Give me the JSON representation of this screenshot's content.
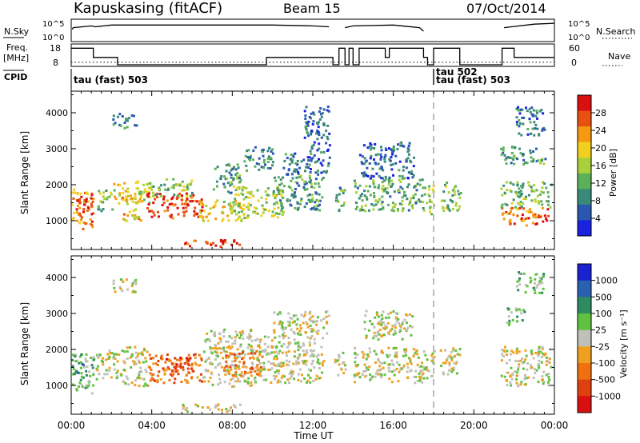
{
  "header": {
    "station": "Kapuskasing (fitACF)",
    "beam": "Beam 15",
    "date": "07/Oct/2014"
  },
  "strip": {
    "nsky_label": "N.Sky",
    "nsky_ticks": [
      "10^5",
      "10^0"
    ],
    "nsearch_label": "N.Search",
    "nsearch_ticks": [
      "10^5",
      "10^0"
    ],
    "freq_label_1": "Freq.",
    "freq_label_2": "[MHz]",
    "freq_ticks": [
      "18",
      "8"
    ],
    "nave_label": "Nave",
    "nave_ticks": [
      "60",
      "0"
    ],
    "cpid_label": "CPID",
    "cpid_entries": [
      {
        "hour": 0,
        "text": "tau (fast) 503",
        "row": "low"
      },
      {
        "hour": 18,
        "text": "tau 502",
        "row": "high"
      },
      {
        "hour": 18,
        "text": "tau (fast) 503",
        "row": "low"
      }
    ]
  },
  "x_axis": {
    "label": "Time UT",
    "ticks": [
      "00:00",
      "04:00",
      "08:00",
      "12:00",
      "16:00",
      "20:00",
      "00:00"
    ]
  },
  "colors": {
    "power": [
      "#1a22e0",
      "#2a58b0",
      "#3a8a7a",
      "#5cb05a",
      "#a8d03a",
      "#f2d020",
      "#f59a10",
      "#e85010",
      "#d81010"
    ],
    "velocity": [
      "#1a22d0",
      "#2a60b0",
      "#2e8a60",
      "#60c040",
      "#c0c0b8",
      "#f0a020",
      "#f07010",
      "#e04010",
      "#d81010"
    ]
  },
  "chart_data": [
    {
      "type": "heatmap",
      "title": "Power",
      "xlabel": "Time UT",
      "ylabel": "Slant Range [km]",
      "xlim": [
        0,
        24
      ],
      "ylim": [
        200,
        4600
      ],
      "yticks": [
        1000,
        2000,
        3000,
        4000
      ],
      "colorbar_label": "Power [dB]",
      "colorbar_ticks": [
        "4",
        "8",
        "12",
        "16",
        "20",
        "24",
        "28"
      ],
      "colorbar_range": [
        0,
        30
      ],
      "vertical_dashed_line_hour": 18,
      "features": [
        {
          "t": [
            0.0,
            1.1
          ],
          "r": [
            800,
            1900
          ],
          "v": 22
        },
        {
          "t": [
            0.2,
            1.0
          ],
          "r": [
            1200,
            1700
          ],
          "v": 27
        },
        {
          "t": [
            1.2,
            2.0
          ],
          "r": [
            1300,
            1900
          ],
          "v": 12
        },
        {
          "t": [
            2.0,
            2.8
          ],
          "r": [
            1500,
            2100
          ],
          "v": 18
        },
        {
          "t": [
            2.5,
            3.5
          ],
          "r": [
            1000,
            1800
          ],
          "v": 20
        },
        {
          "t": [
            3.0,
            4.0
          ],
          "r": [
            1500,
            2200
          ],
          "v": 16
        },
        {
          "t": [
            3.7,
            6.5
          ],
          "r": [
            1100,
            1800
          ],
          "v": 27
        },
        {
          "t": [
            4.0,
            6.0
          ],
          "r": [
            1700,
            2200
          ],
          "v": 14
        },
        {
          "t": [
            6.3,
            8.5
          ],
          "r": [
            1000,
            1600
          ],
          "v": 18
        },
        {
          "t": [
            7.0,
            8.5
          ],
          "r": [
            1800,
            2600
          ],
          "v": 10
        },
        {
          "t": [
            8.0,
            10.5
          ],
          "r": [
            1100,
            2000
          ],
          "v": 15
        },
        {
          "t": [
            8.5,
            10.0
          ],
          "r": [
            2400,
            3100
          ],
          "v": 8
        },
        {
          "t": [
            10.0,
            12.5
          ],
          "r": [
            1300,
            2300
          ],
          "v": 10
        },
        {
          "t": [
            10.5,
            12.8
          ],
          "r": [
            2300,
            3000
          ],
          "v": 6
        },
        {
          "t": [
            2.0,
            3.2
          ],
          "r": [
            3600,
            4000
          ],
          "v": 8
        },
        {
          "t": [
            5.5,
            8.5
          ],
          "r": [
            300,
            500
          ],
          "v": 26
        },
        {
          "t": [
            11.5,
            12.8
          ],
          "r": [
            3000,
            4200
          ],
          "v": 6
        },
        {
          "t": [
            13.0,
            13.6
          ],
          "r": [
            1300,
            2000
          ],
          "v": 10
        },
        {
          "t": [
            14.0,
            17.5
          ],
          "r": [
            1300,
            2200
          ],
          "v": 11
        },
        {
          "t": [
            14.3,
            17.0
          ],
          "r": [
            2200,
            3200
          ],
          "v": 6
        },
        {
          "t": [
            17.5,
            18.0
          ],
          "r": [
            1200,
            2000
          ],
          "v": 14
        },
        {
          "t": [
            18.3,
            19.3
          ],
          "r": [
            1300,
            2100
          ],
          "v": 12
        },
        {
          "t": [
            21.3,
            23.8
          ],
          "r": [
            900,
            1400
          ],
          "v": 24
        },
        {
          "t": [
            21.3,
            23.8
          ],
          "r": [
            1400,
            2100
          ],
          "v": 12
        },
        {
          "t": [
            21.3,
            23.5
          ],
          "r": [
            2600,
            3100
          ],
          "v": 10
        },
        {
          "t": [
            22.0,
            23.5
          ],
          "r": [
            3400,
            4200
          ],
          "v": 6
        }
      ]
    },
    {
      "type": "heatmap",
      "title": "Velocity",
      "xlabel": "Time UT",
      "ylabel": "Slant Range [km]",
      "xlim": [
        0,
        24
      ],
      "ylim": [
        200,
        4600
      ],
      "yticks": [
        1000,
        2000,
        3000,
        4000
      ],
      "colorbar_label": "Velocity [m s⁻¹]",
      "colorbar_ticks": [
        "1000",
        "500",
        "100",
        "25",
        "-25",
        "-100",
        "-500",
        "-1000"
      ],
      "vertical_dashed_line_hour": 18,
      "features": [
        {
          "t": [
            0.0,
            1.1
          ],
          "r": [
            800,
            1900
          ],
          "v": 3
        },
        {
          "t": [
            0.0,
            0.6
          ],
          "r": [
            1300,
            1700
          ],
          "v": 2
        },
        {
          "t": [
            1.2,
            2.5
          ],
          "r": [
            1200,
            2000
          ],
          "v": 4
        },
        {
          "t": [
            2.5,
            3.8
          ],
          "r": [
            1000,
            2100
          ],
          "v": 4
        },
        {
          "t": [
            3.8,
            6.5
          ],
          "r": [
            1100,
            1900
          ],
          "v": 6
        },
        {
          "t": [
            4.5,
            6.0
          ],
          "r": [
            1400,
            1800
          ],
          "v": 7
        },
        {
          "t": [
            2.0,
            3.2
          ],
          "r": [
            3600,
            4000
          ],
          "v": 4
        },
        {
          "t": [
            6.5,
            9.0
          ],
          "r": [
            1000,
            2600
          ],
          "v": 4
        },
        {
          "t": [
            7.5,
            9.5
          ],
          "r": [
            1300,
            2000
          ],
          "v": 6
        },
        {
          "t": [
            9.0,
            12.5
          ],
          "r": [
            1100,
            2400
          ],
          "v": 4
        },
        {
          "t": [
            10.0,
            12.8
          ],
          "r": [
            2400,
            3100
          ],
          "v": 4
        },
        {
          "t": [
            5.5,
            8.5
          ],
          "r": [
            300,
            500
          ],
          "v": 4
        },
        {
          "t": [
            13.0,
            13.6
          ],
          "r": [
            1300,
            2000
          ],
          "v": 4
        },
        {
          "t": [
            14.0,
            17.5
          ],
          "r": [
            1100,
            2100
          ],
          "v": 4
        },
        {
          "t": [
            14.5,
            17.0
          ],
          "r": [
            2300,
            3100
          ],
          "v": 4
        },
        {
          "t": [
            17.5,
            18.0
          ],
          "r": [
            1200,
            2000
          ],
          "v": 4
        },
        {
          "t": [
            18.3,
            19.3
          ],
          "r": [
            1300,
            2100
          ],
          "v": 4
        },
        {
          "t": [
            21.3,
            23.8
          ],
          "r": [
            1000,
            2100
          ],
          "v": 4
        },
        {
          "t": [
            21.5,
            22.5
          ],
          "r": [
            2700,
            3200
          ],
          "v": 3
        },
        {
          "t": [
            22.0,
            23.5
          ],
          "r": [
            3600,
            4200
          ],
          "v": 3
        }
      ]
    },
    {
      "type": "line",
      "title": "N.Sky / N.Search",
      "x": [
        0,
        0.05,
        0.1,
        1.0,
        1.2,
        2.0,
        5.0,
        8.0,
        10.0,
        12.0,
        12.8,
        13.0,
        13.6,
        14.0,
        16.0,
        17.3,
        17.5,
        18.0,
        18.3,
        19.0,
        21.2,
        21.5,
        23.0,
        24.0
      ],
      "values": [
        null,
        0.6,
        0.7,
        0.8,
        0.75,
        0.85,
        0.85,
        0.85,
        0.85,
        0.8,
        0.75,
        null,
        0.7,
        0.8,
        0.85,
        0.7,
        0.5,
        null,
        0.8,
        null,
        null,
        0.7,
        0.9,
        0.95
      ]
    },
    {
      "type": "line",
      "title": "Freq / Nave",
      "freq_x": [
        0,
        1.0,
        1.1,
        2.2,
        2.3,
        9.5,
        9.7,
        12.8,
        13.0,
        13.3,
        13.6,
        13.8,
        14.0,
        14.3,
        15.5,
        15.6,
        15.8,
        17.5,
        17.7,
        18.0,
        18.3,
        19.3,
        21.2,
        21.4,
        22.0,
        24.0
      ],
      "freq_values": [
        17,
        17,
        12,
        12,
        8,
        8,
        12,
        12,
        8,
        17,
        8,
        17,
        8,
        17,
        17,
        12,
        17,
        12,
        8,
        17,
        17,
        8,
        8,
        17,
        12,
        12
      ],
      "nave_value": 8
    }
  ]
}
